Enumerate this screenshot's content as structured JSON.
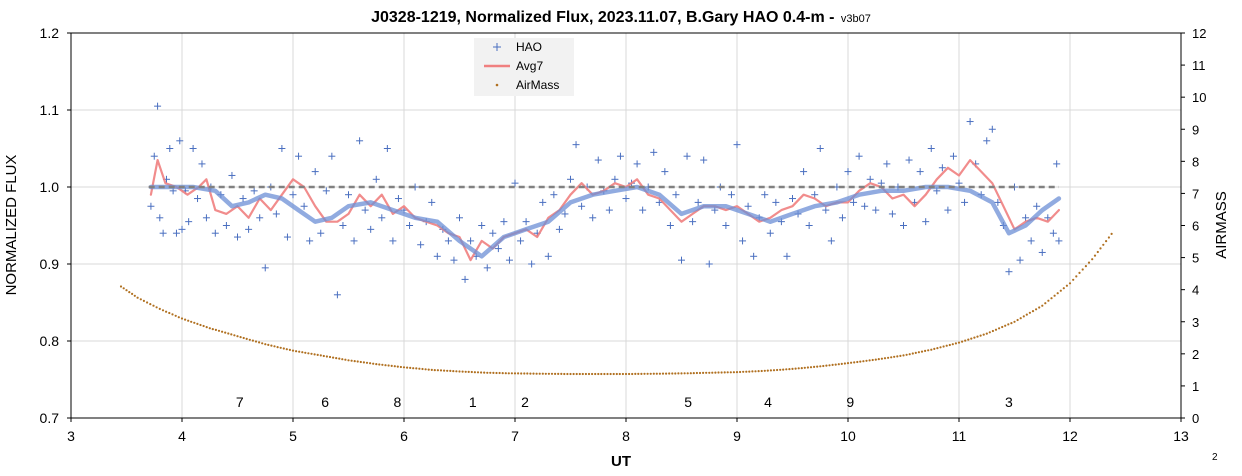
{
  "chart_data": {
    "type": "scatter",
    "title": "J0328-1219, Normalized Flux, 2023.11.07, B.Gary HAO 0.4-m - ",
    "title_version": "v3b07",
    "xlabel": "UT",
    "ylabel": "NORMALIZED FLUX",
    "y2label": "AIRMASS",
    "xlim": [
      3,
      13
    ],
    "ylim": [
      0.7,
      1.2
    ],
    "y2lim": [
      0,
      12
    ],
    "x_ticks": [
      "3",
      "4",
      "5",
      "6",
      "7",
      "8",
      "9",
      "10",
      "11",
      "12",
      "13"
    ],
    "y_ticks": [
      "0.7",
      "0.8",
      "0.9",
      "1.0",
      "1.1",
      "1.2"
    ],
    "y2_ticks": [
      "0",
      "1",
      "2",
      "3",
      "4",
      "5",
      "6",
      "7",
      "8",
      "9",
      "10",
      "11",
      "12"
    ],
    "grid": true,
    "legend_position": "top-center",
    "legend": [
      "HAO",
      "Avg7",
      "AirMass"
    ],
    "colors": {
      "hao": "#4a6fc0",
      "avg7": "#f08080",
      "airmass": "#b07020",
      "model": "#6c8fd6",
      "reference": "#808080",
      "grid": "#d9d9d9"
    },
    "reference_level": 1.0,
    "reference_range": [
      3.7,
      11.9
    ],
    "hao_points": [
      [
        3.72,
        0.975
      ],
      [
        3.75,
        1.04
      ],
      [
        3.78,
        1.105
      ],
      [
        3.8,
        0.96
      ],
      [
        3.83,
        0.94
      ],
      [
        3.86,
        1.01
      ],
      [
        3.89,
        1.05
      ],
      [
        3.92,
        0.995
      ],
      [
        3.95,
        0.94
      ],
      [
        3.98,
        1.06
      ],
      [
        4.0,
        0.945
      ],
      [
        4.03,
        0.995
      ],
      [
        4.06,
        0.955
      ],
      [
        4.1,
        1.05
      ],
      [
        4.14,
        0.985
      ],
      [
        4.18,
        1.03
      ],
      [
        4.22,
        0.96
      ],
      [
        4.26,
        1.0
      ],
      [
        4.3,
        0.94
      ],
      [
        4.35,
        0.99
      ],
      [
        4.4,
        0.95
      ],
      [
        4.45,
        1.015
      ],
      [
        4.5,
        0.935
      ],
      [
        4.55,
        0.985
      ],
      [
        4.6,
        0.945
      ],
      [
        4.65,
        0.995
      ],
      [
        4.7,
        0.96
      ],
      [
        4.75,
        0.895
      ],
      [
        4.8,
        1.0
      ],
      [
        4.85,
        0.965
      ],
      [
        4.9,
        1.05
      ],
      [
        4.95,
        0.935
      ],
      [
        5.0,
        0.99
      ],
      [
        5.05,
        1.04
      ],
      [
        5.1,
        0.975
      ],
      [
        5.15,
        0.93
      ],
      [
        5.2,
        1.02
      ],
      [
        5.25,
        0.94
      ],
      [
        5.3,
        0.995
      ],
      [
        5.35,
        1.04
      ],
      [
        5.4,
        0.86
      ],
      [
        5.45,
        0.95
      ],
      [
        5.5,
        0.99
      ],
      [
        5.55,
        0.93
      ],
      [
        5.6,
        1.06
      ],
      [
        5.65,
        0.97
      ],
      [
        5.7,
        0.945
      ],
      [
        5.75,
        1.01
      ],
      [
        5.8,
        0.96
      ],
      [
        5.85,
        1.05
      ],
      [
        5.9,
        0.93
      ],
      [
        5.95,
        0.985
      ],
      [
        6.0,
        0.97
      ],
      [
        6.05,
        0.95
      ],
      [
        6.1,
        1.0
      ],
      [
        6.15,
        0.925
      ],
      [
        6.2,
        0.955
      ],
      [
        6.25,
        0.98
      ],
      [
        6.3,
        0.91
      ],
      [
        6.35,
        0.945
      ],
      [
        6.4,
        0.93
      ],
      [
        6.45,
        0.905
      ],
      [
        6.5,
        0.96
      ],
      [
        6.55,
        0.88
      ],
      [
        6.6,
        0.93
      ],
      [
        6.65,
        0.91
      ],
      [
        6.7,
        0.95
      ],
      [
        6.75,
        0.895
      ],
      [
        6.8,
        0.94
      ],
      [
        6.85,
        0.92
      ],
      [
        6.9,
        0.955
      ],
      [
        6.95,
        0.905
      ],
      [
        7.0,
        1.005
      ],
      [
        7.05,
        0.93
      ],
      [
        7.1,
        0.955
      ],
      [
        7.15,
        0.9
      ],
      [
        7.2,
        0.94
      ],
      [
        7.25,
        0.98
      ],
      [
        7.3,
        0.91
      ],
      [
        7.35,
        0.99
      ],
      [
        7.4,
        0.945
      ],
      [
        7.45,
        0.965
      ],
      [
        7.5,
        1.01
      ],
      [
        7.55,
        1.055
      ],
      [
        7.6,
        0.975
      ],
      [
        7.65,
        1.0
      ],
      [
        7.7,
        0.96
      ],
      [
        7.75,
        1.035
      ],
      [
        7.8,
        0.995
      ],
      [
        7.85,
        0.97
      ],
      [
        7.9,
        1.01
      ],
      [
        7.95,
        1.04
      ],
      [
        8.0,
        0.985
      ],
      [
        8.05,
        1.005
      ],
      [
        8.1,
        1.03
      ],
      [
        8.15,
        0.97
      ],
      [
        8.2,
        1.0
      ],
      [
        8.25,
        1.045
      ],
      [
        8.3,
        0.98
      ],
      [
        8.35,
        1.02
      ],
      [
        8.4,
        0.95
      ],
      [
        8.45,
        0.99
      ],
      [
        8.5,
        0.905
      ],
      [
        8.55,
        1.04
      ],
      [
        8.6,
        0.955
      ],
      [
        8.65,
        0.98
      ],
      [
        8.7,
        1.035
      ],
      [
        8.75,
        0.9
      ],
      [
        8.8,
        0.97
      ],
      [
        8.85,
        1.0
      ],
      [
        8.9,
        0.95
      ],
      [
        8.95,
        0.99
      ],
      [
        9.0,
        1.055
      ],
      [
        9.05,
        0.93
      ],
      [
        9.1,
        0.975
      ],
      [
        9.15,
        0.91
      ],
      [
        9.2,
        0.96
      ],
      [
        9.25,
        0.99
      ],
      [
        9.3,
        0.94
      ],
      [
        9.35,
        0.98
      ],
      [
        9.4,
        0.955
      ],
      [
        9.45,
        0.91
      ],
      [
        9.5,
        0.985
      ],
      [
        9.55,
        0.965
      ],
      [
        9.6,
        1.02
      ],
      [
        9.65,
        0.95
      ],
      [
        9.7,
        0.99
      ],
      [
        9.75,
        1.05
      ],
      [
        9.8,
        0.97
      ],
      [
        9.85,
        0.93
      ],
      [
        9.9,
        1.0
      ],
      [
        9.95,
        0.96
      ],
      [
        10.0,
        1.02
      ],
      [
        10.05,
        0.98
      ],
      [
        10.1,
        1.04
      ],
      [
        10.15,
        0.975
      ],
      [
        10.2,
        1.01
      ],
      [
        10.25,
        0.97
      ],
      [
        10.3,
        1.005
      ],
      [
        10.35,
        1.03
      ],
      [
        10.4,
        0.965
      ],
      [
        10.45,
        1.0
      ],
      [
        10.5,
        0.95
      ],
      [
        10.55,
        1.035
      ],
      [
        10.6,
        0.98
      ],
      [
        10.65,
        1.02
      ],
      [
        10.7,
        0.955
      ],
      [
        10.75,
        1.05
      ],
      [
        10.8,
        0.995
      ],
      [
        10.85,
        1.025
      ],
      [
        10.9,
        0.97
      ],
      [
        10.95,
        1.04
      ],
      [
        11.0,
        1.005
      ],
      [
        11.05,
        0.98
      ],
      [
        11.1,
        1.085
      ],
      [
        11.15,
        1.03
      ],
      [
        11.2,
        0.99
      ],
      [
        11.25,
        1.06
      ],
      [
        11.3,
        1.075
      ],
      [
        11.35,
        0.98
      ],
      [
        11.4,
        0.95
      ],
      [
        11.45,
        0.89
      ],
      [
        11.5,
        1.0
      ],
      [
        11.55,
        0.905
      ],
      [
        11.6,
        0.96
      ],
      [
        11.65,
        0.93
      ],
      [
        11.7,
        0.975
      ],
      [
        11.75,
        0.915
      ],
      [
        11.8,
        0.96
      ],
      [
        11.85,
        0.94
      ],
      [
        11.88,
        1.03
      ],
      [
        11.9,
        0.93
      ]
    ],
    "avg7_points": [
      [
        3.72,
        0.99
      ],
      [
        3.78,
        1.035
      ],
      [
        3.85,
        1.005
      ],
      [
        3.95,
        1.0
      ],
      [
        4.05,
        0.99
      ],
      [
        4.15,
        1.0
      ],
      [
        4.22,
        1.01
      ],
      [
        4.3,
        0.97
      ],
      [
        4.4,
        0.965
      ],
      [
        4.5,
        0.975
      ],
      [
        4.6,
        0.96
      ],
      [
        4.7,
        0.985
      ],
      [
        4.8,
        0.97
      ],
      [
        4.9,
        0.99
      ],
      [
        5.0,
        1.01
      ],
      [
        5.1,
        1.0
      ],
      [
        5.2,
        0.975
      ],
      [
        5.3,
        0.955
      ],
      [
        5.4,
        0.955
      ],
      [
        5.5,
        0.965
      ],
      [
        5.6,
        0.99
      ],
      [
        5.7,
        0.975
      ],
      [
        5.8,
        0.99
      ],
      [
        5.9,
        0.965
      ],
      [
        6.0,
        0.975
      ],
      [
        6.1,
        0.96
      ],
      [
        6.2,
        0.955
      ],
      [
        6.3,
        0.95
      ],
      [
        6.4,
        0.94
      ],
      [
        6.5,
        0.935
      ],
      [
        6.6,
        0.905
      ],
      [
        6.7,
        0.93
      ],
      [
        6.8,
        0.92
      ],
      [
        6.9,
        0.935
      ],
      [
        7.0,
        0.94
      ],
      [
        7.1,
        0.945
      ],
      [
        7.2,
        0.935
      ],
      [
        7.3,
        0.96
      ],
      [
        7.4,
        0.97
      ],
      [
        7.5,
        0.99
      ],
      [
        7.6,
        1.005
      ],
      [
        7.7,
        0.99
      ],
      [
        7.8,
        0.995
      ],
      [
        7.9,
        1.005
      ],
      [
        8.0,
        1.0
      ],
      [
        8.1,
        1.01
      ],
      [
        8.2,
        0.99
      ],
      [
        8.3,
        0.985
      ],
      [
        8.4,
        0.97
      ],
      [
        8.5,
        0.955
      ],
      [
        8.6,
        0.965
      ],
      [
        8.7,
        0.975
      ],
      [
        8.8,
        0.975
      ],
      [
        8.9,
        0.97
      ],
      [
        9.0,
        0.975
      ],
      [
        9.1,
        0.965
      ],
      [
        9.2,
        0.955
      ],
      [
        9.3,
        0.96
      ],
      [
        9.4,
        0.97
      ],
      [
        9.5,
        0.975
      ],
      [
        9.6,
        0.99
      ],
      [
        9.7,
        0.985
      ],
      [
        9.8,
        0.975
      ],
      [
        9.9,
        0.98
      ],
      [
        10.0,
        0.98
      ],
      [
        10.1,
        0.995
      ],
      [
        10.2,
        1.005
      ],
      [
        10.3,
        1.0
      ],
      [
        10.4,
        0.985
      ],
      [
        10.5,
        0.99
      ],
      [
        10.6,
        0.975
      ],
      [
        10.7,
        0.99
      ],
      [
        10.8,
        1.01
      ],
      [
        10.9,
        1.025
      ],
      [
        11.0,
        1.015
      ],
      [
        11.1,
        1.035
      ],
      [
        11.2,
        1.02
      ],
      [
        11.3,
        1.005
      ],
      [
        11.4,
        0.975
      ],
      [
        11.5,
        0.945
      ],
      [
        11.6,
        0.955
      ],
      [
        11.7,
        0.96
      ],
      [
        11.8,
        0.955
      ],
      [
        11.9,
        0.97
      ]
    ],
    "model_points": [
      [
        3.72,
        1.0
      ],
      [
        3.9,
        1.0
      ],
      [
        4.1,
        1.0
      ],
      [
        4.3,
        0.995
      ],
      [
        4.45,
        0.975
      ],
      [
        4.6,
        0.98
      ],
      [
        4.75,
        0.99
      ],
      [
        4.9,
        0.985
      ],
      [
        5.05,
        0.97
      ],
      [
        5.2,
        0.955
      ],
      [
        5.35,
        0.96
      ],
      [
        5.5,
        0.975
      ],
      [
        5.7,
        0.98
      ],
      [
        5.9,
        0.97
      ],
      [
        6.1,
        0.96
      ],
      [
        6.3,
        0.955
      ],
      [
        6.5,
        0.93
      ],
      [
        6.7,
        0.91
      ],
      [
        6.9,
        0.935
      ],
      [
        7.1,
        0.945
      ],
      [
        7.3,
        0.955
      ],
      [
        7.5,
        0.98
      ],
      [
        7.7,
        0.99
      ],
      [
        7.9,
        0.995
      ],
      [
        8.1,
        1.0
      ],
      [
        8.3,
        0.99
      ],
      [
        8.5,
        0.965
      ],
      [
        8.7,
        0.975
      ],
      [
        8.9,
        0.975
      ],
      [
        9.1,
        0.965
      ],
      [
        9.3,
        0.955
      ],
      [
        9.5,
        0.965
      ],
      [
        9.7,
        0.975
      ],
      [
        9.9,
        0.98
      ],
      [
        10.1,
        0.99
      ],
      [
        10.3,
        0.995
      ],
      [
        10.5,
        0.995
      ],
      [
        10.7,
        1.0
      ],
      [
        10.9,
        1.0
      ],
      [
        11.1,
        0.995
      ],
      [
        11.3,
        0.98
      ],
      [
        11.45,
        0.94
      ],
      [
        11.6,
        0.95
      ],
      [
        11.75,
        0.97
      ],
      [
        11.9,
        0.985
      ]
    ],
    "airmass_curve": [
      [
        3.45,
        4.1
      ],
      [
        3.6,
        3.75
      ],
      [
        3.8,
        3.4
      ],
      [
        4.0,
        3.1
      ],
      [
        4.25,
        2.8
      ],
      [
        4.5,
        2.55
      ],
      [
        4.75,
        2.3
      ],
      [
        5.0,
        2.1
      ],
      [
        5.25,
        1.95
      ],
      [
        5.5,
        1.8
      ],
      [
        5.75,
        1.68
      ],
      [
        6.0,
        1.58
      ],
      [
        6.25,
        1.5
      ],
      [
        6.5,
        1.45
      ],
      [
        6.75,
        1.41
      ],
      [
        7.0,
        1.39
      ],
      [
        7.25,
        1.38
      ],
      [
        7.5,
        1.37
      ],
      [
        7.75,
        1.37
      ],
      [
        8.0,
        1.37
      ],
      [
        8.25,
        1.38
      ],
      [
        8.5,
        1.39
      ],
      [
        8.75,
        1.41
      ],
      [
        9.0,
        1.43
      ],
      [
        9.25,
        1.47
      ],
      [
        9.5,
        1.53
      ],
      [
        9.75,
        1.61
      ],
      [
        10.0,
        1.71
      ],
      [
        10.25,
        1.82
      ],
      [
        10.5,
        1.95
      ],
      [
        10.75,
        2.13
      ],
      [
        11.0,
        2.35
      ],
      [
        11.25,
        2.63
      ],
      [
        11.5,
        3.0
      ],
      [
        11.75,
        3.5
      ],
      [
        12.0,
        4.2
      ],
      [
        12.2,
        4.95
      ],
      [
        12.3,
        5.4
      ],
      [
        12.4,
        5.85
      ]
    ],
    "annotations": [
      {
        "label": "7",
        "x": 4.52
      },
      {
        "label": "6",
        "x": 5.29
      },
      {
        "label": "8",
        "x": 5.94
      },
      {
        "label": "1",
        "x": 6.62
      },
      {
        "label": "2",
        "x": 7.09
      },
      {
        "label": "5",
        "x": 8.56
      },
      {
        "label": "4",
        "x": 9.28
      },
      {
        "label": "9",
        "x": 10.02
      },
      {
        "label": "3",
        "x": 11.45
      }
    ]
  },
  "corner_label": "2"
}
